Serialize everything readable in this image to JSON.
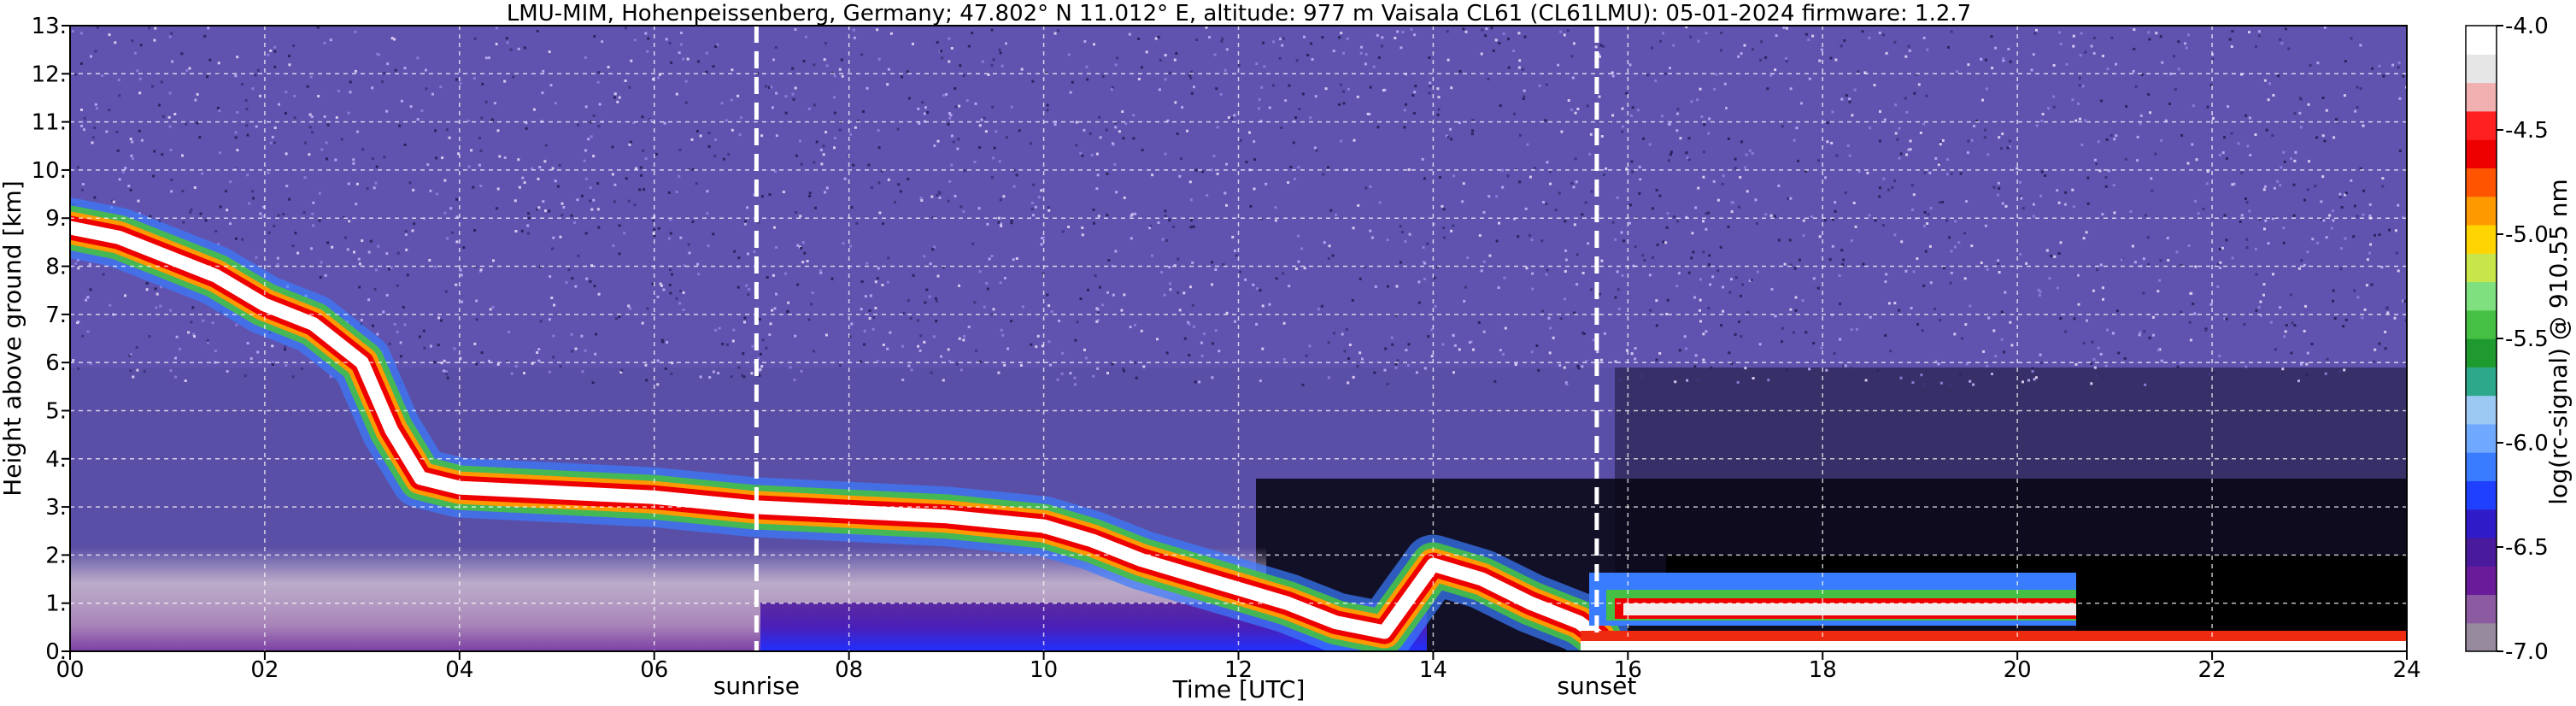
{
  "chart_data": {
    "type": "heatmap",
    "title": "LMU-MIM, Hohenpeissenberg, Germany; 47.802° N 11.012° E, altitude: 977 m    Vaisala CL61 (CL61LMU): 05-01-2024    firmware: 1.2.7",
    "xlabel": "Time [UTC]",
    "ylabel": "Height above ground [km]",
    "colorbar_label": "log(rc-signal) @ 910.55 nm",
    "xlim": [
      0,
      24
    ],
    "ylim": [
      0,
      13
    ],
    "clim": [
      -7.0,
      -4.0
    ],
    "x_ticks": [
      0,
      2,
      4,
      6,
      8,
      10,
      12,
      14,
      16,
      18,
      20,
      22,
      24
    ],
    "x_tick_labels": [
      "00",
      "02",
      "04",
      "06",
      "08",
      "10",
      "12",
      "14",
      "16",
      "18",
      "20",
      "22",
      "24"
    ],
    "y_ticks": [
      0,
      1,
      2,
      3,
      4,
      5,
      6,
      7,
      8,
      9,
      10,
      11,
      12,
      13
    ],
    "y_tick_labels": [
      "0.",
      "1.",
      "2.",
      "3.",
      "4.",
      "5.",
      "6.",
      "7.",
      "8.",
      "9.",
      "10.",
      "11.",
      "12.",
      "13."
    ],
    "colorbar_ticks": [
      -7.0,
      -6.5,
      -6.0,
      -5.5,
      -5.0,
      -4.5,
      -4.0
    ],
    "colorbar_tick_labels": [
      "-7.0",
      "-6.5",
      "-6.0",
      "-5.5",
      "-5.0",
      "-4.5",
      "-4.0"
    ],
    "grid": true,
    "annotations": [
      {
        "label": "sunrise",
        "x": 7.05
      },
      {
        "label": "sunset",
        "x": 15.68
      }
    ],
    "colormap": [
      "#978a9e",
      "#8c5aa0",
      "#6a1b9a",
      "#4a1a9c",
      "#2f1cc8",
      "#2040ff",
      "#3a7cff",
      "#6fa8ff",
      "#9cc8f4",
      "#2ea88a",
      "#1e9a2e",
      "#45c045",
      "#7ee07e",
      "#c8e64a",
      "#ffd400",
      "#ff9900",
      "#ff5500",
      "#ee0000",
      "#ff2020",
      "#f0b0b0",
      "#e6e6e6",
      "#ffffff"
    ],
    "cloud_layer": {
      "description_free": true,
      "time": [
        0.0,
        0.5,
        1.0,
        1.5,
        2.0,
        2.5,
        3.0,
        3.3,
        3.6,
        4.0,
        5.0,
        6.0,
        7.0,
        8.0,
        9.0,
        9.5,
        10.0,
        10.5,
        11.0,
        11.5,
        12.0,
        12.5,
        13.0,
        13.5,
        14.0,
        14.5,
        15.0,
        15.5,
        15.7
      ],
      "height_km": [
        8.8,
        8.6,
        8.2,
        7.8,
        7.2,
        6.8,
        6.0,
        4.6,
        3.6,
        3.4,
        3.3,
        3.2,
        3.0,
        2.9,
        2.8,
        2.7,
        2.6,
        2.3,
        1.9,
        1.6,
        1.3,
        1.0,
        0.6,
        0.4,
        1.8,
        1.5,
        1.0,
        0.6,
        0.3
      ]
    }
  }
}
